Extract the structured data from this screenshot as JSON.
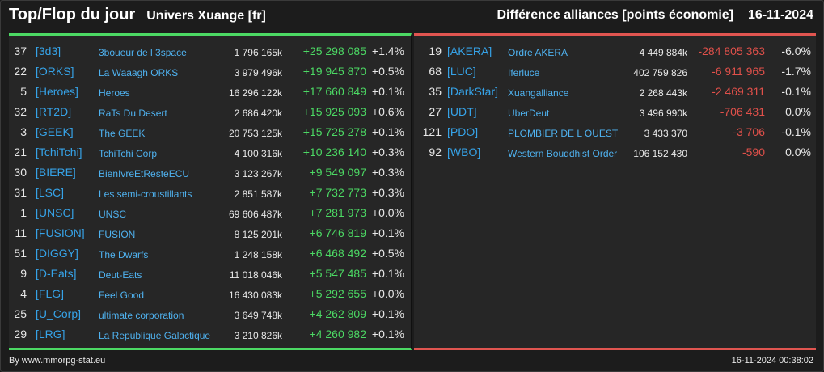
{
  "header": {
    "title": "Top/Flop du jour",
    "universe": "Univers Xuange [fr]",
    "right_title": "Différence alliances [points économie]",
    "date": "16-11-2024"
  },
  "colors": {
    "positive": "#4cd964",
    "negative": "#e0504a",
    "tag": "#36a3e8",
    "background": "#262626"
  },
  "top": [
    {
      "rank": "37",
      "tag": "[3d3]",
      "name": "3boueur de l 3space",
      "points": "1 796 165k",
      "diff": "+25 298 085",
      "pct": "+1.4%"
    },
    {
      "rank": "22",
      "tag": "[ORKS]",
      "name": "La Waaagh ORKS",
      "points": "3 979 496k",
      "diff": "+19 945 870",
      "pct": "+0.5%"
    },
    {
      "rank": "5",
      "tag": "[Heroes]",
      "name": "Heroes",
      "points": "16 296 122k",
      "diff": "+17 660 849",
      "pct": "+0.1%"
    },
    {
      "rank": "32",
      "tag": "[RT2D]",
      "name": "RaTs Du Desert",
      "points": "2 686 420k",
      "diff": "+15 925 093",
      "pct": "+0.6%"
    },
    {
      "rank": "3",
      "tag": "[GEEK]",
      "name": "The GEEK",
      "points": "20 753 125k",
      "diff": "+15 725 278",
      "pct": "+0.1%"
    },
    {
      "rank": "21",
      "tag": "[TchiTchi]",
      "name": "TchiTchi Corp",
      "points": "4 100 316k",
      "diff": "+10 236 140",
      "pct": "+0.3%"
    },
    {
      "rank": "30",
      "tag": "[BIERE]",
      "name": "BienIvreEtResteECU",
      "points": "3 123 267k",
      "diff": "+9 549 097",
      "pct": "+0.3%"
    },
    {
      "rank": "31",
      "tag": "[LSC]",
      "name": "Les semi-croustillants",
      "points": "2 851 587k",
      "diff": "+7 732 773",
      "pct": "+0.3%"
    },
    {
      "rank": "1",
      "tag": "[UNSC]",
      "name": "UNSC",
      "points": "69 606 487k",
      "diff": "+7 281 973",
      "pct": "+0.0%"
    },
    {
      "rank": "11",
      "tag": "[FUSION]",
      "name": "FUSION",
      "points": "8 125 201k",
      "diff": "+6 746 819",
      "pct": "+0.1%"
    },
    {
      "rank": "51",
      "tag": "[DIGGY]",
      "name": "The Dwarfs",
      "points": "1 248 158k",
      "diff": "+6 468 492",
      "pct": "+0.5%"
    },
    {
      "rank": "9",
      "tag": "[D-Eats]",
      "name": "Deut-Eats",
      "points": "11 018 046k",
      "diff": "+5 547 485",
      "pct": "+0.1%"
    },
    {
      "rank": "4",
      "tag": "[FLG]",
      "name": "Feel Good",
      "points": "16 430 083k",
      "diff": "+5 292 655",
      "pct": "+0.0%"
    },
    {
      "rank": "25",
      "tag": "[U_Corp]",
      "name": "ultimate corporation",
      "points": "3 649 748k",
      "diff": "+4 262 809",
      "pct": "+0.1%"
    },
    {
      "rank": "29",
      "tag": "[LRG]",
      "name": "La Republique Galactique",
      "points": "3 210 826k",
      "diff": "+4 260 982",
      "pct": "+0.1%"
    }
  ],
  "flop": [
    {
      "rank": "19",
      "tag": "[AKERA]",
      "name": "Ordre AKERA",
      "points": "4 449 884k",
      "diff": "-284 805 363",
      "pct": "-6.0%"
    },
    {
      "rank": "68",
      "tag": "[LUC]",
      "name": "Iferluce",
      "points": "402 759 826",
      "diff": "-6 911 965",
      "pct": "-1.7%"
    },
    {
      "rank": "35",
      "tag": "[DarkStar]",
      "name": "Xuangalliance",
      "points": "2 268 443k",
      "diff": "-2 469 311",
      "pct": "-0.1%"
    },
    {
      "rank": "27",
      "tag": "[UDT]",
      "name": "UberDeut",
      "points": "3 496 990k",
      "diff": "-706 431",
      "pct": "0.0%"
    },
    {
      "rank": "121",
      "tag": "[PDO]",
      "name": "PLOMBIER DE L OUEST",
      "points": "3 433 370",
      "diff": "-3 706",
      "pct": "-0.1%"
    },
    {
      "rank": "92",
      "tag": "[WBO]",
      "name": "Western Bouddhist Order",
      "points": "106 152 430",
      "diff": "-590",
      "pct": "0.0%"
    }
  ],
  "footer": {
    "credit": "By www.mmorpg-stat.eu",
    "timestamp": "16-11-2024 00:38:02"
  }
}
